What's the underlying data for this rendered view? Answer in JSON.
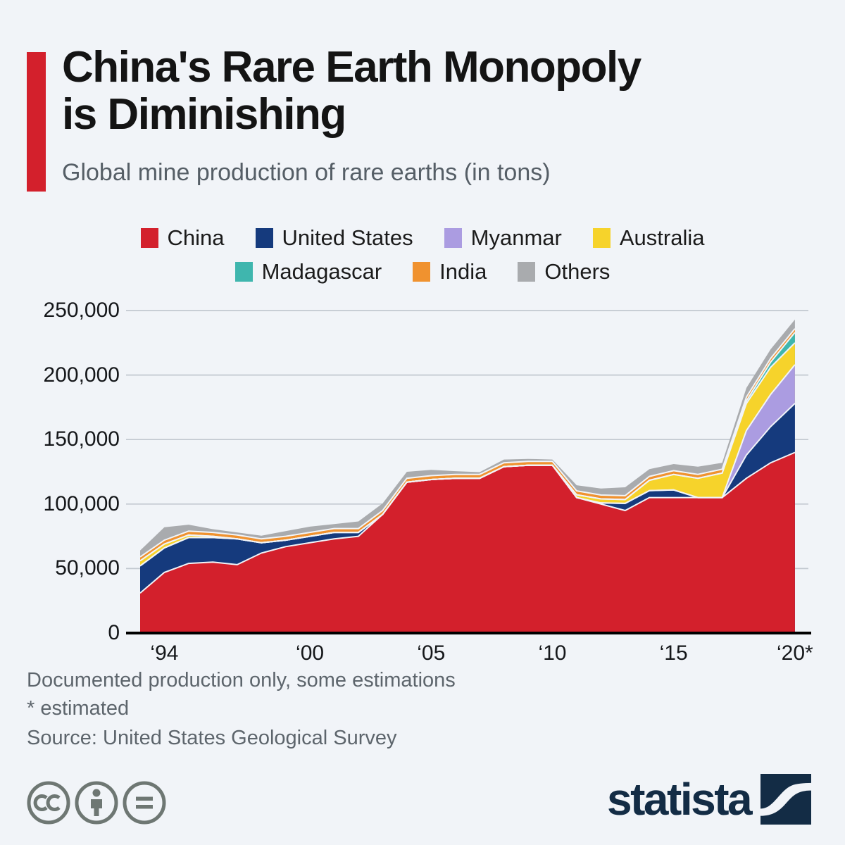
{
  "page": {
    "background": "#f1f4f8"
  },
  "header": {
    "title_line1": "China's Rare Earth Monopoly",
    "title_line2": "is Diminishing",
    "subtitle": "Global mine production of rare earths (in tons)",
    "accent_color": "#d3202c"
  },
  "legend": {
    "items": [
      {
        "label": "China",
        "color": "#d3202c"
      },
      {
        "label": "United States",
        "color": "#153a7d"
      },
      {
        "label": "Myanmar",
        "color": "#ab9ce1"
      },
      {
        "label": "Australia",
        "color": "#f6d32b"
      },
      {
        "label": "Madagascar",
        "color": "#3fb6ae"
      },
      {
        "label": "India",
        "color": "#f0922f"
      },
      {
        "label": "Others",
        "color": "#a9abae"
      }
    ]
  },
  "chart_data": {
    "type": "area",
    "stacked": true,
    "title": "Global mine production of rare earths (in tons)",
    "xlabel": "",
    "ylabel": "tons",
    "ylim": [
      0,
      250000
    ],
    "grid": true,
    "legend_position": "top",
    "x": [
      1993,
      1994,
      1995,
      1996,
      1997,
      1998,
      1999,
      2000,
      2001,
      2002,
      2003,
      2004,
      2005,
      2006,
      2007,
      2008,
      2009,
      2010,
      2011,
      2012,
      2013,
      2014,
      2015,
      2016,
      2017,
      2018,
      2019,
      2020
    ],
    "x_tick_years": [
      1994,
      2000,
      2005,
      2010,
      2015,
      2020
    ],
    "x_tick_labels": [
      "‘94",
      "‘00",
      "‘05",
      "‘10",
      "‘15",
      "‘20*"
    ],
    "y_ticks": [
      0,
      50000,
      100000,
      150000,
      200000,
      250000
    ],
    "y_tick_labels": [
      "0",
      "50,000",
      "100,000",
      "150,000",
      "200,000",
      "250,000"
    ],
    "series": [
      {
        "name": "China",
        "color": "#d3202c",
        "values": [
          31000,
          47000,
          54000,
          55000,
          53000,
          62000,
          67000,
          70000,
          73000,
          75000,
          92000,
          117000,
          119000,
          120000,
          120000,
          129000,
          130000,
          130000,
          105000,
          100000,
          95000,
          105000,
          105000,
          105000,
          105000,
          120000,
          132000,
          140000
        ]
      },
      {
        "name": "United States",
        "color": "#153a7d",
        "values": [
          21000,
          19000,
          20000,
          19000,
          20000,
          8000,
          5000,
          5000,
          5000,
          3000,
          0,
          0,
          0,
          0,
          0,
          0,
          0,
          0,
          0,
          800,
          5500,
          5400,
          5900,
          0,
          0,
          18000,
          28000,
          38000
        ]
      },
      {
        "name": "Myanmar",
        "color": "#ab9ce1",
        "values": [
          0,
          0,
          0,
          0,
          0,
          0,
          0,
          0,
          0,
          0,
          0,
          0,
          0,
          0,
          0,
          0,
          0,
          0,
          0,
          0,
          0,
          0,
          0,
          0,
          0,
          19000,
          25000,
          30000
        ]
      },
      {
        "name": "Australia",
        "color": "#f6d32b",
        "values": [
          4000,
          3000,
          2000,
          1000,
          0,
          0,
          0,
          0,
          0,
          0,
          0,
          0,
          0,
          0,
          0,
          0,
          0,
          0,
          2200,
          3200,
          3000,
          8000,
          12000,
          15000,
          19000,
          21000,
          21000,
          17000
        ]
      },
      {
        "name": "Madagascar",
        "color": "#3fb6ae",
        "values": [
          0,
          0,
          0,
          0,
          0,
          0,
          0,
          0,
          0,
          0,
          0,
          0,
          0,
          0,
          0,
          0,
          0,
          0,
          0,
          0,
          0,
          0,
          0,
          0,
          0,
          2000,
          4000,
          8000
        ]
      },
      {
        "name": "India",
        "color": "#f0922f",
        "values": [
          3000,
          3000,
          3000,
          3000,
          3000,
          3000,
          3000,
          3000,
          3000,
          3000,
          3000,
          3000,
          3000,
          3000,
          3000,
          3000,
          3000,
          3000,
          3000,
          3000,
          3000,
          3000,
          3000,
          3000,
          3000,
          2900,
          2900,
          2900
        ]
      },
      {
        "name": "Others",
        "color": "#a9abae",
        "values": [
          5000,
          10000,
          5000,
          2500,
          2000,
          2500,
          4000,
          4500,
          3500,
          5500,
          5500,
          5000,
          4500,
          2500,
          1700,
          2500,
          2000,
          1500,
          4400,
          5000,
          6500,
          5600,
          5100,
          6000,
          5000,
          7100,
          7100,
          7100
        ]
      }
    ],
    "gridline_color": "#c2c8d0",
    "axis_color": "#000000"
  },
  "footnotes": {
    "line1": "Documented production only, some estimations",
    "line2": "* estimated",
    "source": "Source: United States Geological Survey"
  },
  "footer": {
    "license_icons": [
      "cc",
      "attribution",
      "no-derivatives"
    ],
    "brand": "statista",
    "brand_color": "#132c45"
  }
}
